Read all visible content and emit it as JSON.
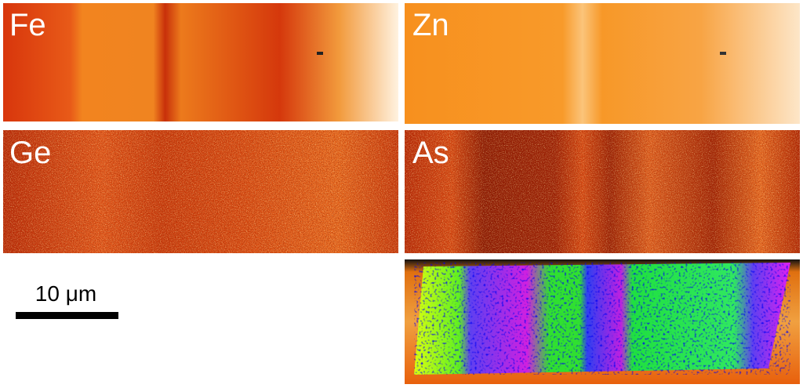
{
  "panels": [
    {
      "label": "Fe"
    },
    {
      "label": "Zn"
    },
    {
      "label": "Ge"
    },
    {
      "label": "As"
    }
  ],
  "scale_bar": {
    "label": "10 μm"
  }
}
